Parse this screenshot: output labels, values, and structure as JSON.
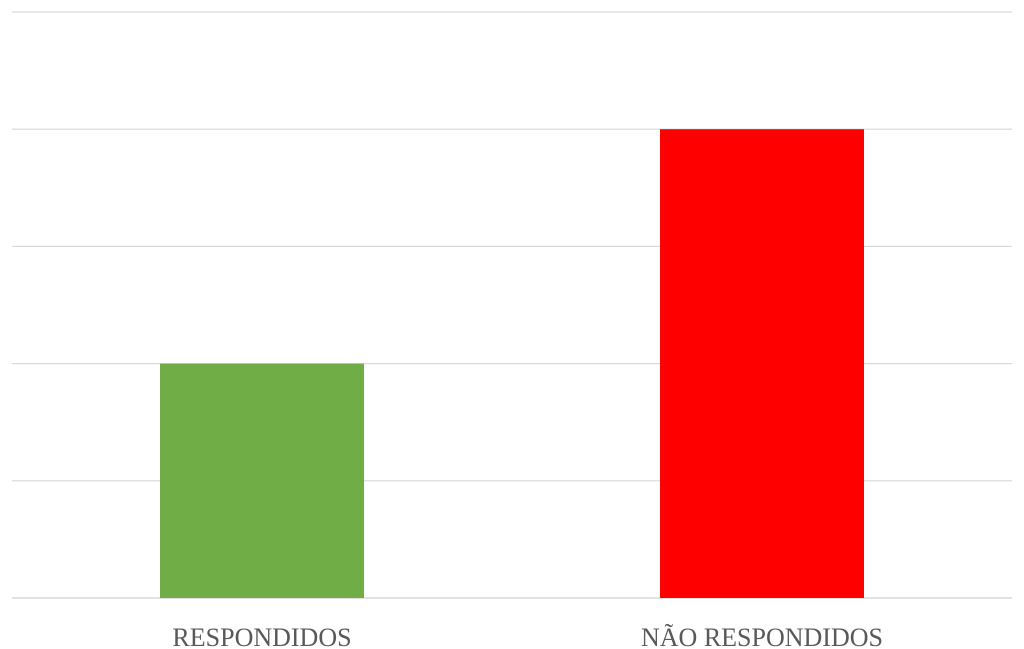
{
  "chart_data": {
    "type": "bar",
    "categories": [
      "RESPONDIDOS",
      "NÃO RESPONDIDOS"
    ],
    "values": [
      2,
      4
    ],
    "colors": [
      "#70AD47",
      "#FF0000"
    ],
    "ylim": [
      0,
      5
    ],
    "grid": true,
    "title": "",
    "xlabel": "",
    "ylabel": ""
  }
}
